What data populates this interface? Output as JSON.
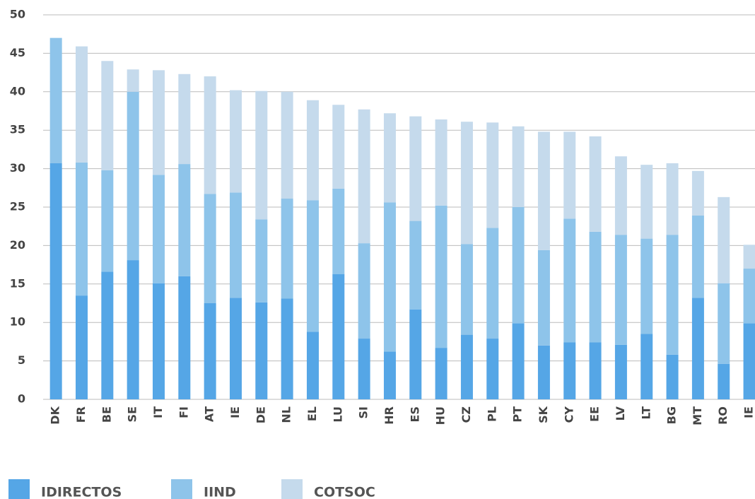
{
  "chart_data": {
    "type": "stacked_bar",
    "categories": [
      "DK",
      "FR",
      "BE",
      "SE",
      "IT",
      "FI",
      "AT",
      "IE",
      "DE",
      "NL",
      "EL",
      "LU",
      "SI",
      "HR",
      "ES",
      "HU",
      "CZ",
      "PL",
      "PT",
      "SK",
      "CY",
      "EE",
      "LV",
      "LT",
      "BG",
      "MT",
      "RO",
      "IE"
    ],
    "series": [
      {
        "name": "IDIRECTOS",
        "color": "#55a6e6",
        "values": [
          30.7,
          13.5,
          16.6,
          18.1,
          15.1,
          16.0,
          12.5,
          13.2,
          12.6,
          13.1,
          8.8,
          16.3,
          7.9,
          6.2,
          11.7,
          6.7,
          8.4,
          7.9,
          9.9,
          7.0,
          7.4,
          7.4,
          7.1,
          8.5,
          5.8,
          13.2,
          4.6,
          9.9
        ]
      },
      {
        "name": "IIND",
        "color": "#8ec4ea",
        "values": [
          16.3,
          17.3,
          13.2,
          21.9,
          14.1,
          14.6,
          14.2,
          13.7,
          10.8,
          13.0,
          17.1,
          11.1,
          12.4,
          19.4,
          11.5,
          18.5,
          11.8,
          14.4,
          15.1,
          12.4,
          16.1,
          14.4,
          14.3,
          12.4,
          15.6,
          10.7,
          10.5,
          7.1
        ]
      },
      {
        "name": "COTSOC",
        "color": "#c5daec",
        "values": [
          0,
          15.1,
          14.2,
          2.9,
          13.6,
          11.7,
          15.3,
          13.3,
          16.7,
          13.9,
          13.0,
          10.9,
          17.4,
          11.6,
          13.6,
          11.2,
          15.9,
          13.7,
          10.5,
          15.4,
          11.3,
          12.4,
          10.2,
          9.6,
          9.3,
          5.8,
          11.2,
          3.1
        ]
      }
    ],
    "ylim": [
      0,
      50
    ],
    "yticks": [
      0,
      5,
      10,
      15,
      20,
      25,
      30,
      35,
      40,
      45,
      50
    ],
    "grid": true,
    "legend": "bottom"
  }
}
